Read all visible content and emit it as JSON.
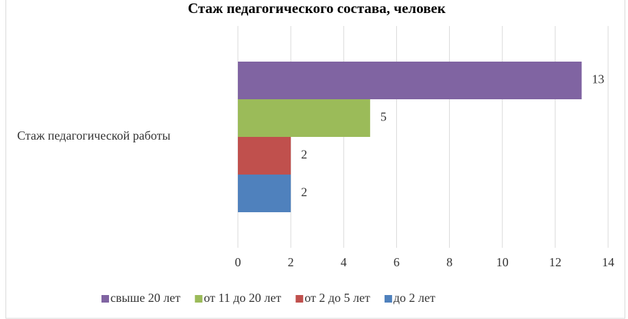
{
  "chart_data": {
    "type": "bar",
    "orientation": "horizontal",
    "title": "Стаж педагогического состава, человек",
    "categories": [
      "Стаж педагогической работы"
    ],
    "series": [
      {
        "name": "свыше 20 лет",
        "color": "#8064a2",
        "values": [
          13
        ]
      },
      {
        "name": "от 11 до 20 лет",
        "color": "#9bbb59",
        "values": [
          5
        ]
      },
      {
        "name": "от 2 до 5 лет",
        "color": "#c0504d",
        "values": [
          2
        ]
      },
      {
        "name": "до 2 лет",
        "color": "#4f81bd",
        "values": [
          2
        ]
      }
    ],
    "xlim": [
      0,
      14
    ],
    "xticks": [
      0,
      2,
      4,
      6,
      8,
      10,
      12,
      14
    ],
    "grid": true,
    "legend": "bottom"
  }
}
